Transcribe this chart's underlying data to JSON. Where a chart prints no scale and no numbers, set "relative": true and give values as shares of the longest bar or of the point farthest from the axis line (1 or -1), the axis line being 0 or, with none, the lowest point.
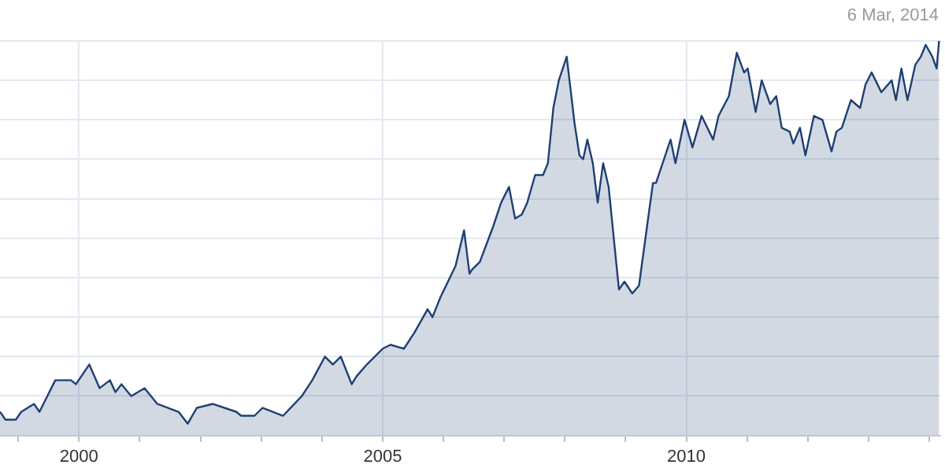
{
  "chart_data": {
    "type": "area",
    "relative": true,
    "annotations": [
      "6 Mar, 2014"
    ],
    "xlim": [
      1998.7,
      2014.18
    ],
    "xticks": [
      {
        "value": 1999,
        "label": null
      },
      2000,
      {
        "value": 2001,
        "label": null
      },
      {
        "value": 2002,
        "label": null
      },
      {
        "value": 2003,
        "label": null
      },
      {
        "value": 2004,
        "label": null
      },
      2005,
      {
        "value": 2006,
        "label": null
      },
      {
        "value": 2007,
        "label": null
      },
      {
        "value": 2008,
        "label": null
      },
      {
        "value": 2009,
        "label": null
      },
      2010,
      {
        "value": 2011,
        "label": null
      },
      {
        "value": 2012,
        "label": null
      },
      {
        "value": 2013,
        "label": null
      },
      {
        "value": 2014,
        "label": null
      }
    ],
    "grid": true,
    "legend": false,
    "marker": "none",
    "line_style": "solid",
    "series": [
      {
        "color": "#1f3f73",
        "x": [
          1998.7,
          1998.79,
          1998.87,
          1998.96,
          1999.05,
          1999.26,
          1999.35,
          1999.61,
          1999.74,
          1999.87,
          1999.95,
          2000.17,
          2000.34,
          2000.51,
          2000.6,
          2000.7,
          2000.86,
          2001.08,
          2001.29,
          2001.64,
          2001.79,
          2001.94,
          2002.2,
          2002.59,
          2002.67,
          2002.89,
          2003.02,
          2003.36,
          2003.67,
          2003.84,
          2004.05,
          2004.18,
          2004.31,
          2004.49,
          2004.57,
          2004.74,
          2005.0,
          2005.13,
          2005.35,
          2005.52,
          2005.74,
          2005.82,
          2005.95,
          2006.2,
          2006.34,
          2006.43,
          2006.47,
          2006.6,
          2006.82,
          2006.95,
          2007.08,
          2007.18,
          2007.29,
          2007.38,
          2007.51,
          2007.64,
          2007.72,
          2007.81,
          2007.9,
          2008.03,
          2008.16,
          2008.24,
          2008.3,
          2008.37,
          2008.46,
          2008.54,
          2008.63,
          2008.72,
          2008.89,
          2008.98,
          2009.11,
          2009.22,
          2009.37,
          2009.45,
          2009.5,
          2009.74,
          2009.82,
          2009.97,
          2010.1,
          2010.25,
          2010.44,
          2010.53,
          2010.7,
          2010.83,
          2010.95,
          2011.01,
          2011.14,
          2011.24,
          2011.38,
          2011.48,
          2011.57,
          2011.7,
          2011.76,
          2011.87,
          2011.96,
          2012.1,
          2012.24,
          2012.39,
          2012.47,
          2012.56,
          2012.71,
          2012.86,
          2012.95,
          2013.05,
          2013.21,
          2013.38,
          2013.45,
          2013.54,
          2013.64,
          2013.77,
          2013.86,
          2013.94,
          2014.05,
          2014.12,
          2014.16
        ],
        "values": [
          0.06,
          0.04,
          0.04,
          0.04,
          0.06,
          0.08,
          0.06,
          0.14,
          0.14,
          0.14,
          0.13,
          0.18,
          0.12,
          0.14,
          0.11,
          0.13,
          0.1,
          0.12,
          0.08,
          0.06,
          0.03,
          0.07,
          0.08,
          0.06,
          0.05,
          0.05,
          0.07,
          0.05,
          0.1,
          0.14,
          0.2,
          0.18,
          0.2,
          0.13,
          0.15,
          0.18,
          0.22,
          0.23,
          0.22,
          0.26,
          0.32,
          0.3,
          0.35,
          0.43,
          0.52,
          0.41,
          0.42,
          0.44,
          0.53,
          0.59,
          0.63,
          0.55,
          0.56,
          0.59,
          0.66,
          0.66,
          0.69,
          0.83,
          0.9,
          0.96,
          0.79,
          0.71,
          0.7,
          0.75,
          0.69,
          0.59,
          0.69,
          0.63,
          0.37,
          0.39,
          0.36,
          0.38,
          0.55,
          0.64,
          0.64,
          0.75,
          0.69,
          0.8,
          0.73,
          0.81,
          0.75,
          0.81,
          0.86,
          0.97,
          0.92,
          0.93,
          0.82,
          0.9,
          0.84,
          0.86,
          0.78,
          0.77,
          0.74,
          0.78,
          0.71,
          0.81,
          0.8,
          0.72,
          0.77,
          0.78,
          0.85,
          0.83,
          0.89,
          0.92,
          0.87,
          0.9,
          0.85,
          0.93,
          0.85,
          0.94,
          0.96,
          0.99,
          0.96,
          0.93,
          1
        ]
      }
    ]
  }
}
